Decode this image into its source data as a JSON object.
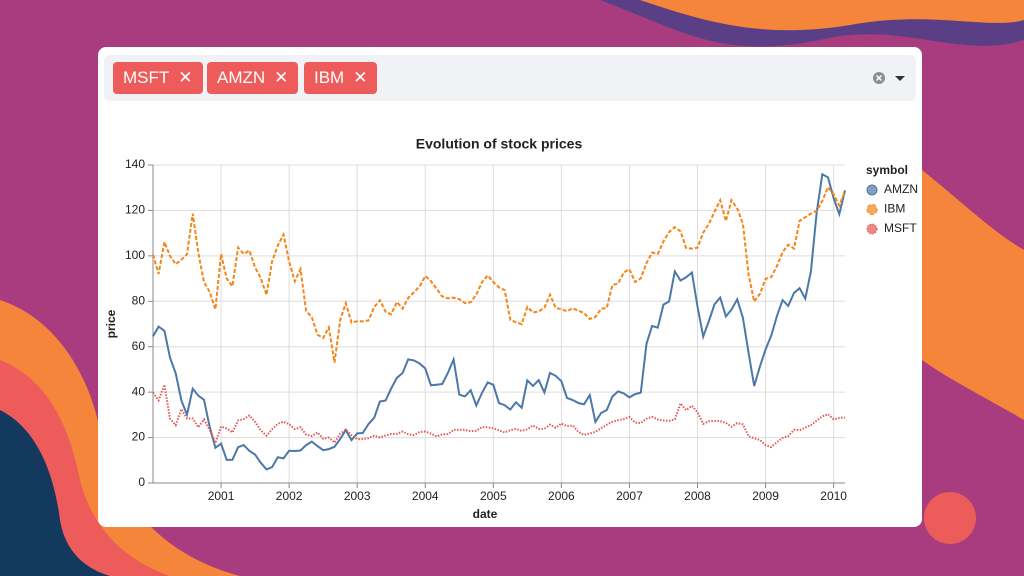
{
  "multiselect": {
    "selected": [
      "MSFT",
      "AMZN",
      "IBM"
    ]
  },
  "chart_data": {
    "type": "line",
    "title": "Evolution of stock prices",
    "x_label": "date",
    "y_label": "price",
    "legend_title": "symbol",
    "legend": "right",
    "grid": true,
    "x": [
      2000,
      2000.083,
      2000.167,
      2000.25,
      2000.333,
      2000.417,
      2000.5,
      2000.583,
      2000.667,
      2000.75,
      2000.833,
      2000.917,
      2001,
      2001.083,
      2001.167,
      2001.25,
      2001.333,
      2001.417,
      2001.5,
      2001.583,
      2001.667,
      2001.75,
      2001.833,
      2001.917,
      2002,
      2002.083,
      2002.167,
      2002.25,
      2002.333,
      2002.417,
      2002.5,
      2002.583,
      2002.667,
      2002.75,
      2002.833,
      2002.917,
      2003,
      2003.083,
      2003.167,
      2003.25,
      2003.333,
      2003.417,
      2003.5,
      2003.583,
      2003.667,
      2003.75,
      2003.833,
      2003.917,
      2004,
      2004.083,
      2004.167,
      2004.25,
      2004.333,
      2004.417,
      2004.5,
      2004.583,
      2004.667,
      2004.75,
      2004.833,
      2004.917,
      2005,
      2005.083,
      2005.167,
      2005.25,
      2005.333,
      2005.417,
      2005.5,
      2005.583,
      2005.667,
      2005.75,
      2005.833,
      2005.917,
      2006,
      2006.083,
      2006.167,
      2006.25,
      2006.333,
      2006.417,
      2006.5,
      2006.583,
      2006.667,
      2006.75,
      2006.833,
      2006.917,
      2007,
      2007.083,
      2007.167,
      2007.25,
      2007.333,
      2007.417,
      2007.5,
      2007.583,
      2007.667,
      2007.75,
      2007.833,
      2007.917,
      2008,
      2008.083,
      2008.167,
      2008.25,
      2008.333,
      2008.417,
      2008.5,
      2008.583,
      2008.667,
      2008.75,
      2008.833,
      2008.917,
      2009,
      2009.083,
      2009.167,
      2009.25,
      2009.333,
      2009.417,
      2009.5,
      2009.583,
      2009.667,
      2009.75,
      2009.833,
      2009.917,
      2010,
      2010.083,
      2010.167
    ],
    "series": [
      {
        "name": "AMZN",
        "color": "#4c78a8",
        "dash": "solid",
        "values": [
          64.56,
          68.87,
          67,
          55.19,
          48.31,
          36.31,
          30.12,
          41.5,
          38.44,
          36.62,
          24.69,
          15.56,
          17.31,
          10.19,
          10.23,
          15.78,
          16.69,
          14.15,
          12.49,
          8.94,
          5.97,
          6.98,
          11.32,
          10.82,
          14.19,
          14.1,
          14.3,
          16.69,
          18.23,
          16.25,
          14.45,
          14.94,
          15.93,
          19.36,
          23.35,
          18.89,
          21.85,
          22.01,
          26.03,
          28.69,
          35.89,
          36.32,
          41.64,
          46.32,
          48.43,
          54.43,
          53.97,
          52.62,
          50.4,
          43.01,
          43.28,
          43.6,
          48.5,
          54.4,
          38.92,
          38.14,
          40.86,
          34.13,
          39.68,
          44.29,
          43.22,
          35.18,
          34.27,
          32.36,
          35.51,
          33.09,
          45.15,
          42.7,
          45.3,
          39.86,
          48.46,
          47.15,
          44.82,
          37.44,
          36.53,
          35.21,
          34.61,
          38.68,
          26.89,
          30.83,
          32.12,
          38.09,
          40.34,
          39.46,
          37.67,
          39.14,
          39.79,
          61.33,
          69.14,
          68.41,
          78.54,
          79.91,
          93.15,
          89.15,
          90.56,
          92.64,
          77.7,
          64.47,
          71.3,
          78.63,
          81.62,
          73.33,
          76.34,
          80.81,
          72.76,
          57.24,
          42.7,
          51.28,
          58.82,
          64.79,
          73.44,
          80.52,
          77.99,
          83.66,
          85.76,
          81.19,
          93.36,
          118.81,
          135.91,
          134.52,
          125.41,
          118.4,
          128.82
        ]
      },
      {
        "name": "IBM",
        "color": "#f58518",
        "dash": "dashed",
        "values": [
          100.52,
          92.11,
          106.11,
          99.95,
          96.31,
          98.33,
          100.74,
          118.62,
          101.19,
          88.5,
          84.12,
          76.47,
          100.76,
          89.98,
          86.63,
          103.7,
          100.82,
          102.35,
          94.87,
          90.25,
          82.82,
          97.58,
          104.5,
          109.36,
          97.54,
          88.82,
          94.15,
          75.82,
          72.97,
          65.31,
          63.86,
          68.52,
          53.01,
          71.76,
          79.16,
          70.58,
          71.22,
          71.13,
          71.57,
          77.47,
          80.48,
          75.42,
          74.28,
          79.67,
          76.8,
          81.5,
          83.9,
          86.6,
          91.1,
          88.9,
          85.5,
          82.1,
          81.3,
          81.6,
          80.9,
          79.2,
          79.6,
          82.9,
          88.4,
          91.4,
          88.5,
          86.1,
          84.9,
          71.8,
          70.8,
          69.9,
          77.5,
          75.1,
          75.5,
          77.2,
          82.9,
          77.1,
          76.5,
          75.6,
          76.9,
          75.9,
          74.8,
          72.2,
          73.1,
          76.7,
          77.1,
          87.2,
          87.8,
          92.7,
          94.1,
          88.5,
          90.1,
          96.8,
          101.5,
          100.9,
          106.4,
          110.5,
          112.6,
          110.8,
          103.5,
          103.2,
          103.6,
          110.2,
          114.1,
          119.4,
          124.5,
          115.3,
          124.5,
          120.9,
          114.1,
          91.6,
          79.9,
          83.2,
          89.9,
          90.6,
          95.5,
          101.6,
          104.9,
          103.2,
          115.4,
          117,
          118.6,
          119.8,
          124.2,
          130.2,
          127.1,
          122.2,
          128.5
        ]
      },
      {
        "name": "MSFT",
        "color": "#e45756",
        "dash": "dotted",
        "values": [
          39.81,
          36.35,
          43.22,
          28.37,
          25.45,
          32.54,
          28.4,
          28.4,
          24.53,
          28.02,
          23.34,
          17.65,
          24.84,
          24,
          22.25,
          27.56,
          28.14,
          29.7,
          26.93,
          23.21,
          20.82,
          23.65,
          26.12,
          26.95,
          25.92,
          23.73,
          24.53,
          21.26,
          20.71,
          22.25,
          19.52,
          19.97,
          17.79,
          21.75,
          23.46,
          21.03,
          19.31,
          19.34,
          19.76,
          20.87,
          20.09,
          20.93,
          21.56,
          21.65,
          22.69,
          21.45,
          21.1,
          22.46,
          22.69,
          21.77,
          20.46,
          21.45,
          21.53,
          23.44,
          23.38,
          23.47,
          22.76,
          23.02,
          24.6,
          24.52,
          24.11,
          23.15,
          22.24,
          23.28,
          23.82,
          22.93,
          23.64,
          25.35,
          23.83,
          23.8,
          25.71,
          24.29,
          26.14,
          25.04,
          25.36,
          22.5,
          21.19,
          21.8,
          22.51,
          24.13,
          25.68,
          26.96,
          27.66,
          28.13,
          29.07,
          26.63,
          26.35,
          28.3,
          29.11,
          27.95,
          27.5,
          27.34,
          28.04,
          35.03,
          32.09,
          34,
          31.13,
          26.07,
          27.21,
          27.34,
          27.25,
          26.47,
          24.75,
          26.36,
          25.78,
          20.57,
          19.66,
          18.91,
          16.63,
          15.81,
          17.99,
          19.84,
          20.59,
          23.42,
          23.18,
          24.43,
          25.49,
          27.48,
          29.27,
          30.34,
          28.05,
          28.67,
          28.8
        ]
      }
    ],
    "xlim": [
      2000,
      2010.167
    ],
    "xticks": [
      2001,
      2002,
      2003,
      2004,
      2005,
      2006,
      2007,
      2008,
      2009,
      2010
    ],
    "ylim": [
      0,
      140
    ],
    "yticks": [
      0,
      20,
      40,
      60,
      80,
      100,
      120,
      140
    ]
  }
}
